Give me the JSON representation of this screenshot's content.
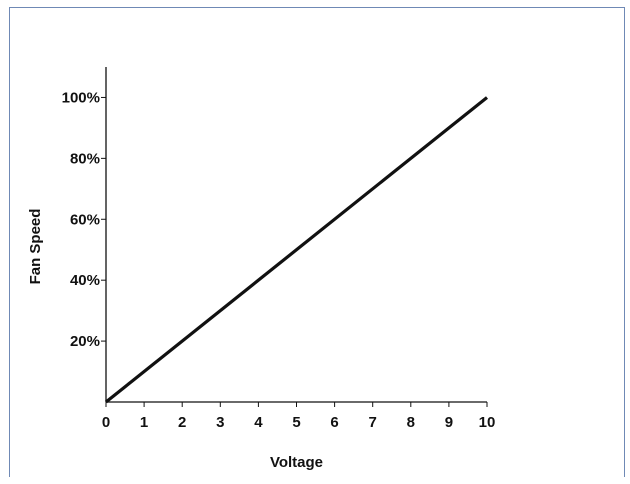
{
  "chart_data": {
    "type": "line",
    "xlabel": "Voltage",
    "ylabel": "Fan Speed",
    "x_ticks": [
      "0",
      "1",
      "2",
      "3",
      "4",
      "5",
      "6",
      "7",
      "8",
      "9",
      "10"
    ],
    "y_ticks": [
      "20%",
      "40%",
      "60%",
      "80%",
      "100%"
    ],
    "xlim": [
      0,
      10
    ],
    "ylim": [
      0,
      110
    ],
    "grid": false,
    "series": [
      {
        "x": [
          0,
          10
        ],
        "y": [
          0,
          100
        ],
        "color": "#111111"
      }
    ]
  }
}
